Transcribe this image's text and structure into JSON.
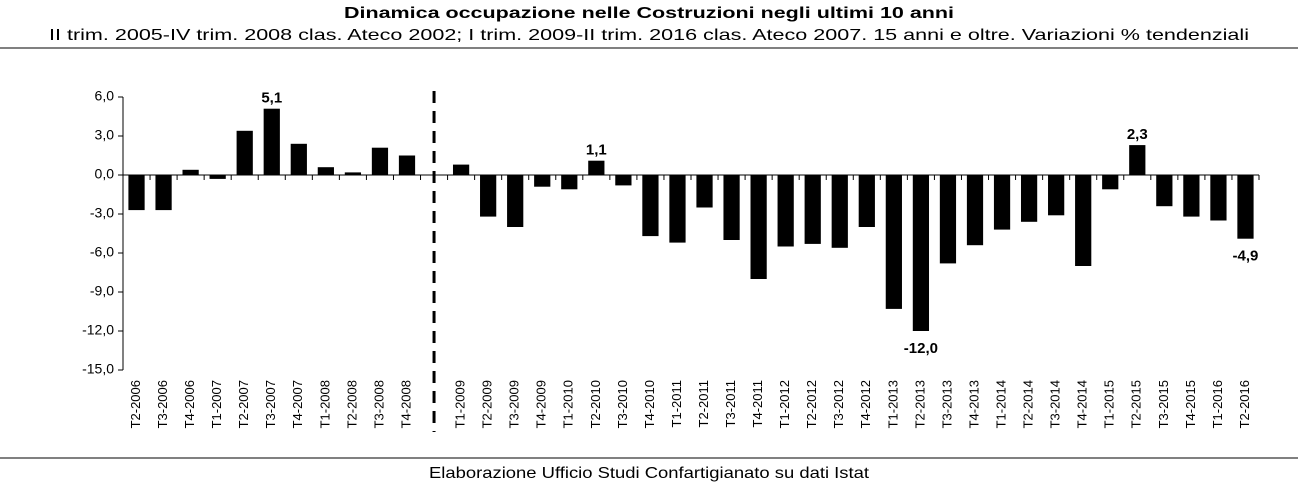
{
  "chart_data": {
    "type": "bar",
    "title": "Dinamica occupazione nelle Costruzioni negli ultimi 10 anni",
    "subtitle": "II trim. 2005-IV trim. 2008 clas. Ateco 2002; I trim. 2009-II trim. 2016 clas. Ateco 2007. 15 anni e oltre. Variazioni % tendenziali",
    "source": "Elaborazione Ufficio Studi Confartigianato su dati Istat",
    "categories": [
      "T2-2006",
      "T3-2006",
      "T4-2006",
      "T1-2007",
      "T2-2007",
      "T3-2007",
      "T4-2007",
      "T1-2008",
      "T2-2008",
      "T3-2008",
      "T4-2008",
      null,
      "T1-2009",
      "T2-2009",
      "T3-2009",
      "T4-2009",
      "T1-2010",
      "T2-2010",
      "T3-2010",
      "T4-2010",
      "T1-2011",
      "T2-2011",
      "T3-2011",
      "T4-2011",
      "T1-2012",
      "T2-2012",
      "T3-2012",
      "T4-2012",
      "T1-2013",
      "T2-2013",
      "T3-2013",
      "T4-2013",
      "T1-2014",
      "T2-2014",
      "T3-2014",
      "T4-2014",
      "T1-2015",
      "T2-2015",
      "T3-2015",
      "T4-2015",
      "T1-2016",
      "T2-2016"
    ],
    "values": [
      -2.7,
      -2.7,
      0.4,
      -0.3,
      3.4,
      5.1,
      2.4,
      0.6,
      0.2,
      2.1,
      1.5,
      null,
      0.8,
      -3.2,
      -4.0,
      -0.9,
      -1.1,
      1.1,
      -0.8,
      -4.7,
      -5.2,
      -2.5,
      -5.0,
      -8.0,
      -5.5,
      -5.3,
      -5.6,
      -4.0,
      -10.3,
      -12.0,
      -6.8,
      -5.4,
      -4.2,
      -3.6,
      -3.1,
      -7.0,
      -1.1,
      2.3,
      -2.4,
      -3.2,
      -3.5,
      -4.9
    ],
    "value_labels": [
      null,
      null,
      null,
      null,
      null,
      "5,1",
      null,
      null,
      null,
      null,
      null,
      null,
      null,
      null,
      null,
      null,
      null,
      "1,1",
      null,
      null,
      null,
      null,
      null,
      null,
      null,
      null,
      null,
      null,
      null,
      "-12,0",
      null,
      null,
      null,
      null,
      null,
      null,
      null,
      "2,3",
      null,
      null,
      null,
      "-4,9"
    ],
    "color": "#000000",
    "ylim": [
      -15,
      6
    ],
    "yticks": [
      {
        "value": -15,
        "label": "-15,0"
      },
      {
        "value": -12,
        "label": "-12,0"
      },
      {
        "value": -9,
        "label": "-9,0"
      },
      {
        "value": -6,
        "label": "-6,0"
      },
      {
        "value": -3,
        "label": "-3,0"
      },
      {
        "value": 0,
        "label": "0,0"
      },
      {
        "value": 3,
        "label": "3,0"
      },
      {
        "value": 6,
        "label": "6,0"
      }
    ]
  }
}
